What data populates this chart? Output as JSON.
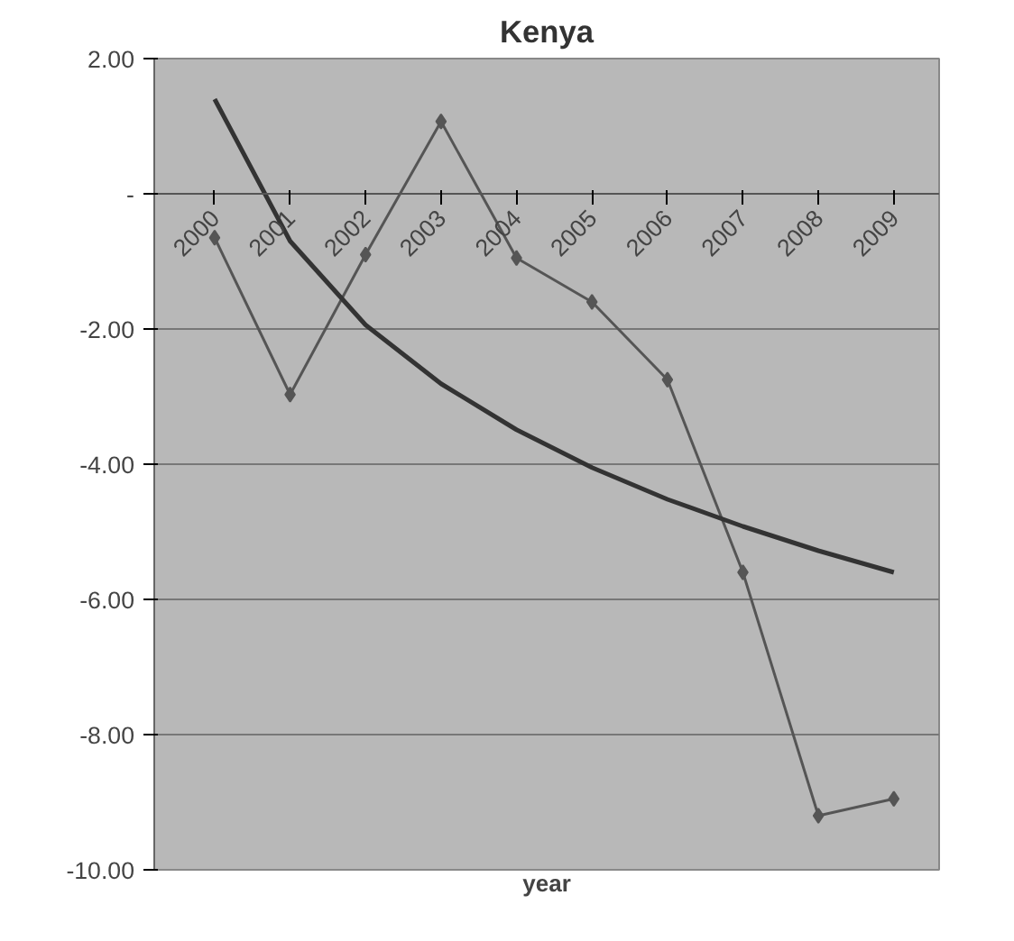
{
  "chart_data": {
    "type": "line",
    "title": "Kenya",
    "xlabel": "year",
    "categories": [
      "2000",
      "2001",
      "2002",
      "2003",
      "2004",
      "2005",
      "2006",
      "2007",
      "2008",
      "2009"
    ],
    "series": [
      {
        "color": "#555555",
        "values": [
          -0.65,
          -2.97,
          -0.9,
          1.07,
          -0.95,
          -1.6,
          -2.75,
          -5.6,
          -9.2,
          -8.95
        ],
        "marker": "diamond"
      },
      {
        "color": "#333333",
        "values": [
          1.4,
          -0.7,
          -1.94,
          -2.81,
          -3.49,
          -4.05,
          -4.52,
          -4.92,
          -5.28,
          -5.6
        ],
        "marker": "none"
      }
    ],
    "ylim": [
      -10,
      2
    ],
    "yticks": [
      {
        "value": -10,
        "label": "-10.00"
      },
      {
        "value": -8,
        "label": "-8.00"
      },
      {
        "value": -6,
        "label": "-6.00"
      },
      {
        "value": -4,
        "label": "-4.00"
      },
      {
        "value": -2,
        "label": "-2.00"
      },
      {
        "value": 0,
        "label": "-"
      },
      {
        "value": 2,
        "label": "2.00"
      }
    ],
    "grid": "y"
  }
}
